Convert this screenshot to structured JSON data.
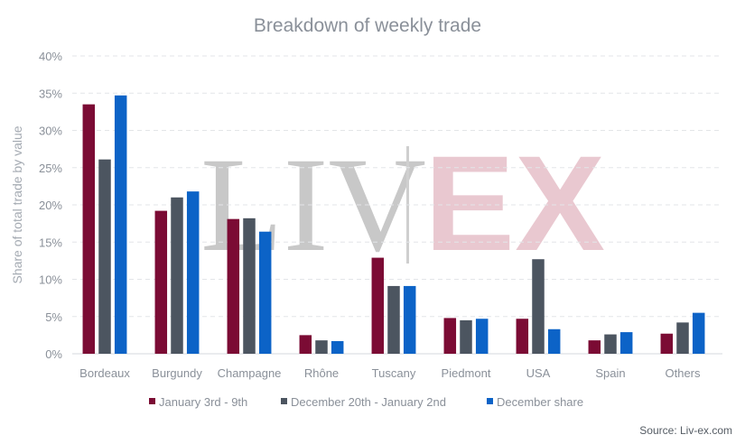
{
  "chart_data": {
    "type": "bar",
    "title": "Breakdown of weekly trade",
    "xlabel": "",
    "ylabel": "Share of total trade by value",
    "categories": [
      "Bordeaux",
      "Burgundy",
      "Champagne",
      "Rhône",
      "Tuscany",
      "Piedmont",
      "USA",
      "Spain",
      "Others"
    ],
    "series": [
      {
        "name": "January 3rd - 9th",
        "color": "#7b0b34",
        "values": [
          33.5,
          19.2,
          18.1,
          2.5,
          12.9,
          4.8,
          4.7,
          1.8,
          2.7
        ]
      },
      {
        "name": "December 20th - January 2nd",
        "color": "#4c5560",
        "values": [
          26.1,
          21.0,
          18.2,
          1.8,
          9.1,
          4.5,
          12.7,
          2.6,
          4.2
        ]
      },
      {
        "name": "December share",
        "color": "#0c63c7",
        "values": [
          34.7,
          21.8,
          16.4,
          1.7,
          9.1,
          4.7,
          3.3,
          2.9,
          5.5
        ]
      }
    ],
    "ylim": [
      0,
      40
    ],
    "yticks": [
      "0%",
      "5%",
      "10%",
      "15%",
      "20%",
      "25%",
      "30%",
      "35%",
      "40%"
    ],
    "grid": true,
    "legend_position": "bottom",
    "source": "Source: Liv-ex.com",
    "watermark": {
      "left": "LIV",
      "right": "EX",
      "left_color": "#c8c8c8",
      "right_color": "#e9c8d0"
    }
  }
}
